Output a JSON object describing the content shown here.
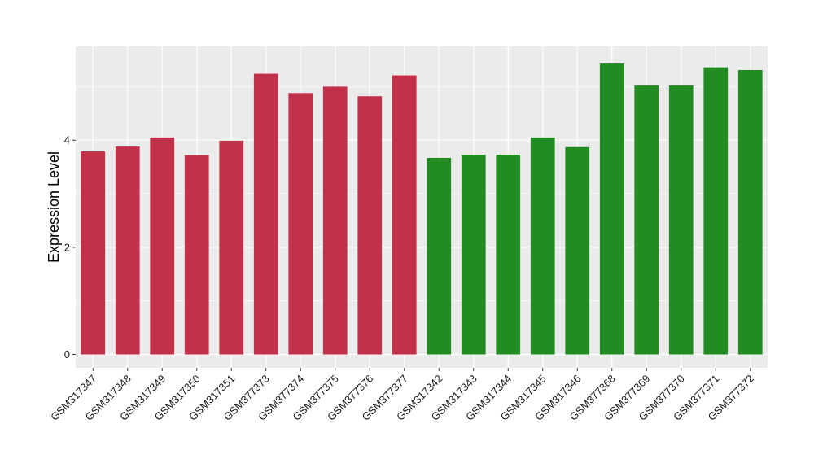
{
  "chart_data": {
    "type": "bar",
    "title": "",
    "xlabel": "",
    "ylabel": "Expression Level",
    "ylim": [
      -0.25,
      5.75
    ],
    "yticks": [
      0,
      2,
      4
    ],
    "grid": true,
    "legend": "none",
    "colors": {
      "group_a": "#c3304a",
      "group_b": "#228b22",
      "panel": "#ebebeb",
      "grid": "#ffffff"
    },
    "categories": [
      "GSM317347",
      "GSM317348",
      "GSM317349",
      "GSM317350",
      "GSM317351",
      "GSM377373",
      "GSM377374",
      "GSM377375",
      "GSM377376",
      "GSM377377",
      "GSM317342",
      "GSM317343",
      "GSM317344",
      "GSM317345",
      "GSM317346",
      "GSM377368",
      "GSM377369",
      "GSM377370",
      "GSM377371",
      "GSM377372"
    ],
    "values": [
      3.79,
      3.88,
      4.05,
      3.72,
      3.99,
      5.24,
      4.88,
      5.0,
      4.82,
      5.21,
      3.67,
      3.73,
      3.73,
      4.05,
      3.87,
      5.43,
      5.02,
      5.02,
      5.36,
      5.31
    ],
    "groups": [
      "a",
      "a",
      "a",
      "a",
      "a",
      "a",
      "a",
      "a",
      "a",
      "a",
      "b",
      "b",
      "b",
      "b",
      "b",
      "b",
      "b",
      "b",
      "b",
      "b"
    ]
  }
}
